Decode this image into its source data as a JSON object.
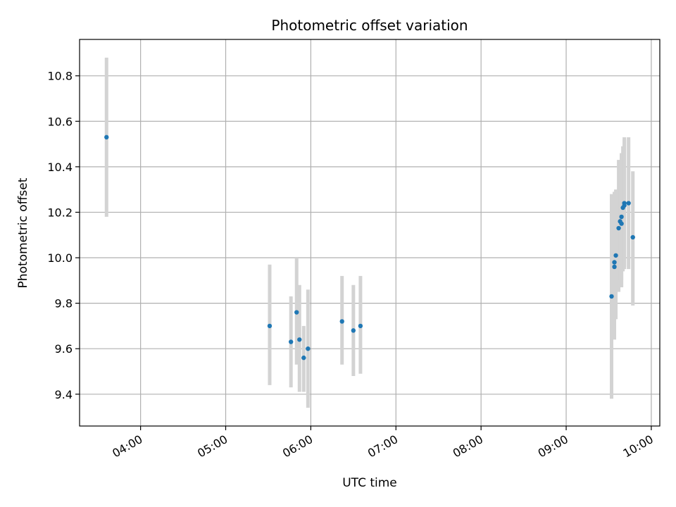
{
  "chart_data": {
    "type": "scatter",
    "title": "Photometric offset variation",
    "xlabel": "UTC time",
    "ylabel": "Photometric offset",
    "x_ticks": [
      "04:00",
      "05:00",
      "06:00",
      "07:00",
      "08:00",
      "09:00",
      "10:00"
    ],
    "y_ticks": [
      "9.4",
      "9.6",
      "9.8",
      "10.0",
      "10.2",
      "10.4",
      "10.6",
      "10.8"
    ],
    "xlim": [
      "03:17",
      "10:06"
    ],
    "ylim": [
      9.26,
      10.96
    ],
    "grid": true,
    "point_color": "#1f77b4",
    "errorbar_color": "#d3d3d3",
    "points": [
      {
        "x": "03:36",
        "y": 10.53,
        "lo": 10.18,
        "hi": 10.88
      },
      {
        "x": "05:31",
        "y": 9.7,
        "lo": 9.44,
        "hi": 9.97
      },
      {
        "x": "05:46",
        "y": 9.63,
        "lo": 9.43,
        "hi": 9.83
      },
      {
        "x": "05:50",
        "y": 9.76,
        "lo": 9.53,
        "hi": 10.0
      },
      {
        "x": "05:52",
        "y": 9.64,
        "lo": 9.41,
        "hi": 9.88
      },
      {
        "x": "05:55",
        "y": 9.56,
        "lo": 9.41,
        "hi": 9.7
      },
      {
        "x": "05:58",
        "y": 9.6,
        "lo": 9.34,
        "hi": 9.86
      },
      {
        "x": "06:22",
        "y": 9.72,
        "lo": 9.53,
        "hi": 9.92
      },
      {
        "x": "06:30",
        "y": 9.68,
        "lo": 9.48,
        "hi": 9.88
      },
      {
        "x": "06:35",
        "y": 9.7,
        "lo": 9.49,
        "hi": 9.92
      },
      {
        "x": "09:32",
        "y": 9.83,
        "lo": 9.38,
        "hi": 10.28
      },
      {
        "x": "09:34",
        "y": 9.98,
        "lo": 9.72,
        "hi": 10.26
      },
      {
        "x": "09:34",
        "y": 9.96,
        "lo": 9.64,
        "hi": 10.29
      },
      {
        "x": "09:35",
        "y": 10.01,
        "lo": 9.73,
        "hi": 10.3
      },
      {
        "x": "09:37",
        "y": 10.13,
        "lo": 9.85,
        "hi": 10.43
      },
      {
        "x": "09:38",
        "y": 10.16,
        "lo": 9.9,
        "hi": 10.43
      },
      {
        "x": "09:39",
        "y": 10.15,
        "lo": 9.87,
        "hi": 10.46
      },
      {
        "x": "09:39",
        "y": 10.18,
        "lo": 9.9,
        "hi": 10.46
      },
      {
        "x": "09:40",
        "y": 10.22,
        "lo": 9.94,
        "hi": 10.49
      },
      {
        "x": "09:41",
        "y": 10.23,
        "lo": 9.96,
        "hi": 10.52
      },
      {
        "x": "09:41",
        "y": 10.24,
        "lo": 9.95,
        "hi": 10.53
      },
      {
        "x": "09:44",
        "y": 10.24,
        "lo": 9.95,
        "hi": 10.53
      },
      {
        "x": "09:47",
        "y": 10.09,
        "lo": 9.79,
        "hi": 10.38
      }
    ]
  }
}
